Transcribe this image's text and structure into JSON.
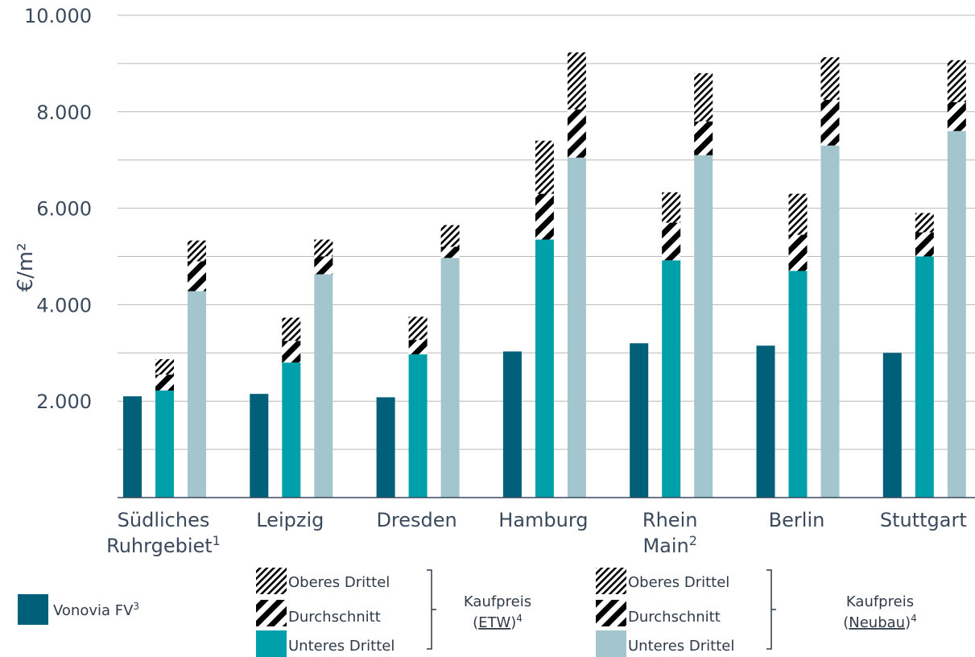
{
  "chart_data": {
    "type": "bar",
    "ylabel": "€/m²",
    "ylim": [
      0,
      10000
    ],
    "yticks": [
      2000,
      4000,
      6000,
      8000,
      10000
    ],
    "ytick_labels": [
      "2.000",
      "4.000",
      "6.000",
      "8.000",
      "10.000"
    ],
    "grid": true,
    "categories": [
      {
        "line1": "Südliches",
        "line2": "Ruhrgebiet",
        "sup": "1"
      },
      {
        "line1": "Leipzig",
        "line2": "",
        "sup": ""
      },
      {
        "line1": "Dresden",
        "line2": "",
        "sup": ""
      },
      {
        "line1": "Hamburg",
        "line2": "",
        "sup": ""
      },
      {
        "line1": "Rhein",
        "line2": "Main",
        "sup": "2"
      },
      {
        "line1": "Berlin",
        "line2": "",
        "sup": ""
      },
      {
        "line1": "Stuttgart",
        "line2": "",
        "sup": ""
      }
    ],
    "series": [
      {
        "name": "Vonovia FV³",
        "values": [
          2100,
          2150,
          2080,
          3030,
          3200,
          3150,
          3000
        ]
      },
      {
        "name": "Kaufpreis (ETW) Unteres Drittel",
        "values": [
          2220,
          2800,
          2970,
          5350,
          4920,
          4700,
          5000
        ]
      },
      {
        "name": "Kaufpreis (ETW) Durchschnitt",
        "values": [
          2550,
          3250,
          3270,
          6300,
          5700,
          5450,
          5500
        ]
      },
      {
        "name": "Kaufpreis (ETW) Oberes Drittel",
        "values": [
          2870,
          3730,
          3750,
          7400,
          6330,
          6300,
          5900
        ]
      },
      {
        "name": "Kaufpreis (Neubau) Unteres Drittel",
        "values": [
          4280,
          4630,
          4970,
          7050,
          7100,
          7300,
          7600
        ]
      },
      {
        "name": "Kaufpreis (Neubau) Durchschnitt",
        "values": [
          4900,
          5000,
          5200,
          8050,
          7800,
          8250,
          8200
        ]
      },
      {
        "name": "Kaufpreis (Neubau) Oberes Drittel",
        "values": [
          5330,
          5350,
          5650,
          9230,
          8800,
          9130,
          9070
        ]
      }
    ],
    "colors": {
      "vonovia": "#00607a",
      "etw": "#00a0ab",
      "neubau": "#a3c6ce",
      "grid": "#b9b9b9",
      "axis": "#3a4a5c",
      "hatch": "#000000"
    }
  },
  "legend": {
    "vonovia_label": "Vonovia FV",
    "vonovia_sup": "3",
    "group1": {
      "oberes": "Oberes Drittel",
      "durchschnitt": "Durchschnitt",
      "unteres": "Unteres Drittel",
      "title_line1": "Kaufpreis",
      "title_open": "(",
      "title_word": "ETW",
      "title_close": ")",
      "title_sup": "4"
    },
    "group2": {
      "oberes": "Oberes Drittel",
      "durchschnitt": "Durchschnitt",
      "unteres": "Unteres Drittel",
      "title_line1": "Kaufpreis",
      "title_open": "(",
      "title_word": "Neubau",
      "title_close": ")",
      "title_sup": "4"
    }
  }
}
